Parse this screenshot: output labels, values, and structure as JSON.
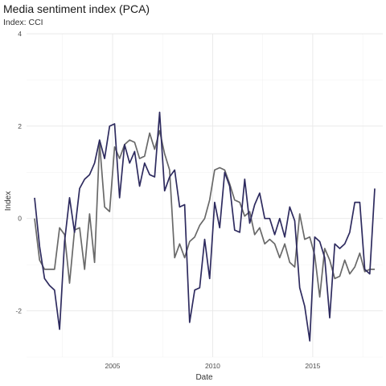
{
  "chart_data": {
    "type": "line",
    "title": "Media sentiment index (PCA)",
    "subtitle": "Index: CCI",
    "xlabel": "Date",
    "ylabel": "Index",
    "xlim": [
      2000.7,
      2018.5
    ],
    "ylim": [
      -3,
      4
    ],
    "x_ticks": [
      2005,
      2010,
      2015
    ],
    "y_ticks": [
      -2,
      0,
      2,
      4
    ],
    "grid": true,
    "legend": "none",
    "series": [
      {
        "color": "#2e2b5f",
        "x": [
          2001.1,
          2001.35,
          2001.6,
          2001.85,
          2002.1,
          2002.35,
          2002.6,
          2002.85,
          2003.1,
          2003.35,
          2003.6,
          2003.85,
          2004.1,
          2004.35,
          2004.6,
          2004.85,
          2005.1,
          2005.35,
          2005.6,
          2005.85,
          2006.1,
          2006.35,
          2006.6,
          2006.85,
          2007.1,
          2007.35,
          2007.6,
          2007.85,
          2008.1,
          2008.35,
          2008.6,
          2008.85,
          2009.1,
          2009.35,
          2009.6,
          2009.85,
          2010.1,
          2010.35,
          2010.6,
          2010.85,
          2011.1,
          2011.35,
          2011.6,
          2011.85,
          2012.1,
          2012.35,
          2012.6,
          2012.85,
          2013.1,
          2013.35,
          2013.6,
          2013.85,
          2014.1,
          2014.35,
          2014.6,
          2014.85,
          2015.1,
          2015.35,
          2015.6,
          2015.85,
          2016.1,
          2016.35,
          2016.6,
          2016.85,
          2017.1,
          2017.35,
          2017.6,
          2017.85,
          2018.1
        ],
        "y": [
          0.45,
          -0.6,
          -1.3,
          -1.45,
          -1.55,
          -2.4,
          -0.5,
          0.45,
          -0.3,
          0.65,
          0.85,
          0.95,
          1.2,
          1.7,
          1.3,
          2.0,
          2.05,
          0.45,
          1.6,
          1.2,
          1.45,
          0.7,
          1.2,
          0.95,
          0.9,
          2.3,
          0.6,
          0.9,
          1.05,
          0.25,
          0.3,
          -2.25,
          -1.55,
          -1.5,
          -0.45,
          -1.3,
          0.35,
          -0.2,
          1.0,
          0.7,
          -0.25,
          -0.3,
          0.85,
          -0.1,
          0.3,
          0.55,
          0.0,
          0.0,
          -0.35,
          0.0,
          -0.4,
          0.25,
          -0.05,
          -1.5,
          -1.9,
          -2.65,
          -0.4,
          -0.5,
          -0.85,
          -2.15,
          -0.55,
          -0.65,
          -0.55,
          -0.3,
          0.35,
          0.35,
          -1.1,
          -1.2,
          0.65
        ]
      },
      {
        "color": "#696969",
        "x": [
          2001.1,
          2001.35,
          2001.6,
          2001.85,
          2002.1,
          2002.35,
          2002.6,
          2002.85,
          2003.1,
          2003.35,
          2003.6,
          2003.85,
          2004.1,
          2004.35,
          2004.6,
          2004.85,
          2005.1,
          2005.35,
          2005.6,
          2005.85,
          2006.1,
          2006.35,
          2006.6,
          2006.85,
          2007.1,
          2007.35,
          2007.6,
          2007.85,
          2008.1,
          2008.35,
          2008.6,
          2008.85,
          2009.1,
          2009.35,
          2009.6,
          2009.85,
          2010.1,
          2010.35,
          2010.6,
          2010.85,
          2011.1,
          2011.35,
          2011.6,
          2011.85,
          2012.1,
          2012.35,
          2012.6,
          2012.85,
          2013.1,
          2013.35,
          2013.6,
          2013.85,
          2014.1,
          2014.35,
          2014.6,
          2014.85,
          2015.1,
          2015.35,
          2015.6,
          2015.85,
          2016.1,
          2016.35,
          2016.6,
          2016.85,
          2017.1,
          2017.35,
          2017.6,
          2017.85,
          2018.1
        ],
        "y": [
          0.0,
          -0.9,
          -1.1,
          -1.1,
          -1.1,
          -0.2,
          -0.35,
          -1.4,
          -0.25,
          -0.2,
          -1.1,
          0.1,
          -0.95,
          1.65,
          0.25,
          0.15,
          1.55,
          1.3,
          1.6,
          1.7,
          1.65,
          1.3,
          1.35,
          1.85,
          1.5,
          1.9,
          1.4,
          1.05,
          -0.85,
          -0.55,
          -0.85,
          -0.5,
          -0.4,
          -0.15,
          0.0,
          0.4,
          1.05,
          1.1,
          1.05,
          0.75,
          0.4,
          0.35,
          0.05,
          0.15,
          -0.35,
          -0.2,
          -0.55,
          -0.45,
          -0.55,
          -0.85,
          -0.55,
          -0.95,
          -1.05,
          0.1,
          -0.45,
          -0.4,
          -0.8,
          -1.7,
          -0.65,
          -0.9,
          -1.3,
          -1.25,
          -0.9,
          -1.2,
          -1.05,
          -0.75,
          -1.15,
          -1.1,
          -1.1
        ]
      }
    ]
  }
}
